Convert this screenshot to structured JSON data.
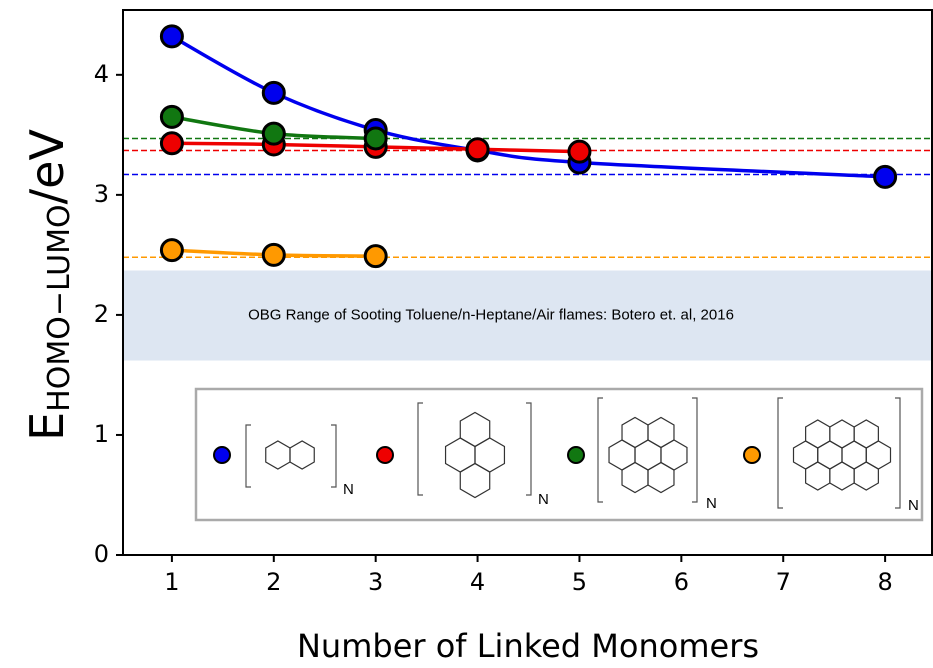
{
  "chart_data": {
    "type": "line",
    "x_label": "Number of Linked Monomers",
    "y_label": {
      "main": "E",
      "subscript": "HOMO−LUMO",
      "suffix": "/eV"
    },
    "annotation": "OBG Range of Sooting Toluene/n-Heptane/Air flames: Botero et. al, 2016",
    "band": [
      1.62,
      2.37
    ],
    "xlim": [
      0.52,
      8.47
    ],
    "ylim": [
      0,
      4.54
    ],
    "xticks": [
      1,
      2,
      3,
      4,
      5,
      6,
      7,
      8
    ],
    "yticks": [
      0,
      1,
      2,
      3,
      4
    ],
    "series": [
      {
        "color": "#0000ee",
        "x": [
          1,
          2,
          3,
          4,
          5,
          8
        ],
        "values": [
          4.32,
          3.85,
          3.54,
          3.37,
          3.27,
          3.15
        ],
        "asymptote": 3.17,
        "repeat_label": "N"
      },
      {
        "color": "#ee0000",
        "x": [
          1,
          2,
          3,
          4,
          5
        ],
        "values": [
          3.43,
          3.42,
          3.4,
          3.38,
          3.36
        ],
        "asymptote": 3.37,
        "repeat_label": "N"
      },
      {
        "color": "#117711",
        "x": [
          1,
          2,
          3
        ],
        "values": [
          3.65,
          3.51,
          3.47
        ],
        "asymptote": 3.47,
        "repeat_label": "N"
      },
      {
        "color": "#ff9900",
        "x": [
          1,
          2,
          3
        ],
        "values": [
          2.54,
          2.5,
          2.49
        ],
        "asymptote": 2.48,
        "repeat_label": "N"
      }
    ]
  }
}
